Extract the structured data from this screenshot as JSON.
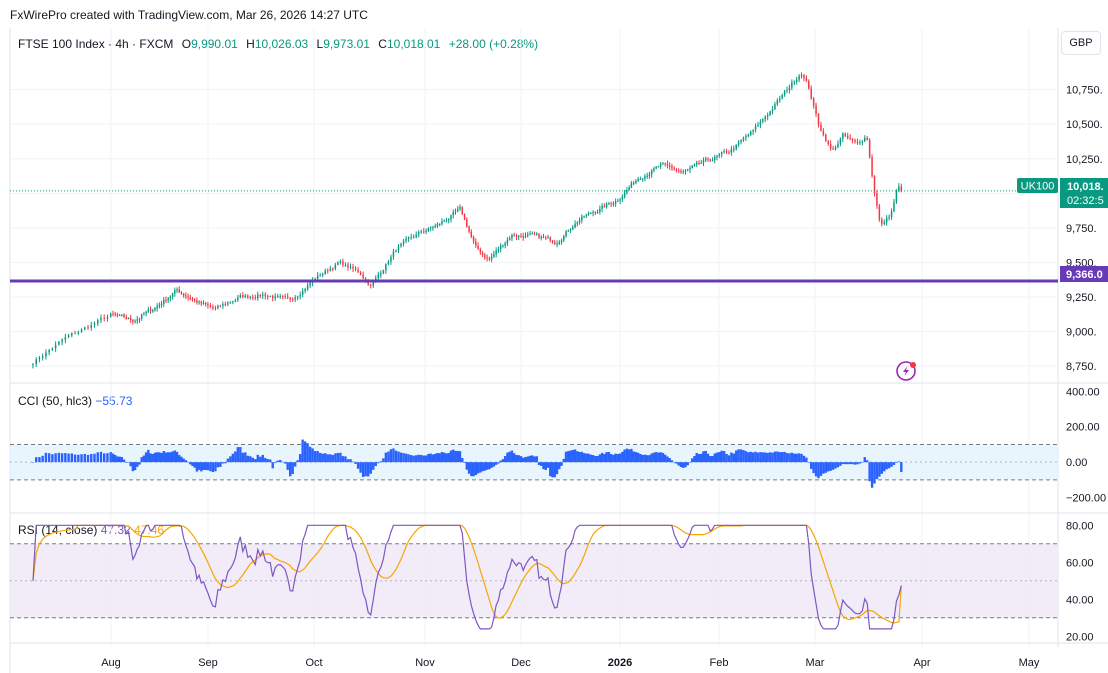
{
  "credit": "FxWirePro created with TradingView.com, Mar 26, 2026 14:27 UTC",
  "currency": "GBP",
  "legend": {
    "symbol": "FTSE 100 Index · 4h · FXCM",
    "o_label": "O",
    "o_value": "9,990.01",
    "h_label": "H",
    "h_value": "10,026.03",
    "l_label": "L",
    "l_value": "9,973.01",
    "c_label": "C",
    "c_value": "10,018.01",
    "change": "+28.00 (+0.28%)"
  },
  "colors": {
    "up": "#089981",
    "down": "#f23645",
    "cci": "#2962ff",
    "rsi": "#7e57c2",
    "rsi_ma": "#f7a600",
    "support": "#673ab7",
    "grid": "#f0f3fa",
    "band_cci": "#e3f2fd",
    "band_rsi": "#ede7f6"
  },
  "badges": {
    "ticker": "UK100",
    "price": "10,018.",
    "countdown": "02:32:5",
    "support": "9,366.0"
  },
  "cci": {
    "name": "CCI (50, hlc3)",
    "value": "−55.73"
  },
  "rsi": {
    "name": "RSI (14, close)",
    "value": "47.32",
    "ma_value": "47.46"
  },
  "chart_data": [
    {
      "type": "candlestick",
      "symbol": "FTSE 100 Index",
      "interval": "4h",
      "ylim": [
        8650,
        10950
      ],
      "y_ticks": [
        "10,750.",
        "10,500.",
        "10,250.",
        "10,000.",
        "9,750.",
        "9,500.",
        "9,250.",
        "9,000.",
        "8,750."
      ],
      "y_tick_values": [
        10750,
        10500,
        10250,
        10000,
        9750,
        9500,
        9250,
        9000,
        8750
      ],
      "x_ticks": [
        "Aug",
        "Sep",
        "Oct",
        "Nov",
        "Dec",
        "2026",
        "Feb",
        "Mar",
        "Apr",
        "May"
      ],
      "current_price": 10018.01,
      "support_level": 9366,
      "series_path": [
        [
          "2025-07-15",
          8780
        ],
        [
          "2025-07-22",
          8950
        ],
        [
          "2025-08-01",
          9120
        ],
        [
          "2025-08-08",
          9080
        ],
        [
          "2025-08-15",
          9170
        ],
        [
          "2025-08-22",
          9300
        ],
        [
          "2025-08-29",
          9210
        ],
        [
          "2025-09-03",
          9160
        ],
        [
          "2025-09-10",
          9250
        ],
        [
          "2025-09-17",
          9270
        ],
        [
          "2025-09-24",
          9220
        ],
        [
          "2025-10-01",
          9380
        ],
        [
          "2025-10-08",
          9500
        ],
        [
          "2025-10-14",
          9420
        ],
        [
          "2025-10-17",
          9330
        ],
        [
          "2025-10-24",
          9600
        ],
        [
          "2025-10-31",
          9720
        ],
        [
          "2025-11-05",
          9770
        ],
        [
          "2025-11-12",
          9880
        ],
        [
          "2025-11-17",
          9600
        ],
        [
          "2025-11-21",
          9520
        ],
        [
          "2025-11-28",
          9700
        ],
        [
          "2025-12-05",
          9690
        ],
        [
          "2025-12-12",
          9650
        ],
        [
          "2025-12-19",
          9810
        ],
        [
          "2025-12-31",
          9950
        ],
        [
          "2026-01-07",
          10120
        ],
        [
          "2026-01-14",
          10200
        ],
        [
          "2026-01-21",
          10150
        ],
        [
          "2026-01-28",
          10230
        ],
        [
          "2026-02-04",
          10300
        ],
        [
          "2026-02-11",
          10450
        ],
        [
          "2026-02-18",
          10660
        ],
        [
          "2026-02-25",
          10880
        ],
        [
          "2026-02-27",
          10780
        ],
        [
          "2026-03-02",
          10500
        ],
        [
          "2026-03-06",
          10300
        ],
        [
          "2026-03-09",
          10420
        ],
        [
          "2026-03-13",
          10350
        ],
        [
          "2026-03-16",
          10420
        ],
        [
          "2026-03-18",
          10050
        ],
        [
          "2026-03-20",
          9760
        ],
        [
          "2026-03-23",
          9850
        ],
        [
          "2026-03-25",
          10050
        ],
        [
          "2026-03-26",
          10018
        ]
      ]
    },
    {
      "type": "histogram",
      "name": "CCI (50, hlc3)",
      "ylim": [
        -270,
        430
      ],
      "y_ticks": [
        "400.00",
        "200.00",
        "0.00",
        "−200.00"
      ],
      "y_tick_values": [
        400,
        200,
        0,
        -200
      ],
      "band": [
        -100,
        100
      ],
      "last_value": -55.73
    },
    {
      "type": "line",
      "name": "RSI (14, close)",
      "ylim": [
        18,
        85
      ],
      "y_ticks": [
        "80.00",
        "60.00",
        "40.00",
        "20.00"
      ],
      "y_tick_values": [
        80,
        60,
        40,
        20
      ],
      "band": [
        30,
        70
      ],
      "midline": 50,
      "series": [
        {
          "name": "RSI",
          "last_value": 47.32
        },
        {
          "name": "RSI-based MA",
          "last_value": 47.46
        }
      ]
    }
  ]
}
